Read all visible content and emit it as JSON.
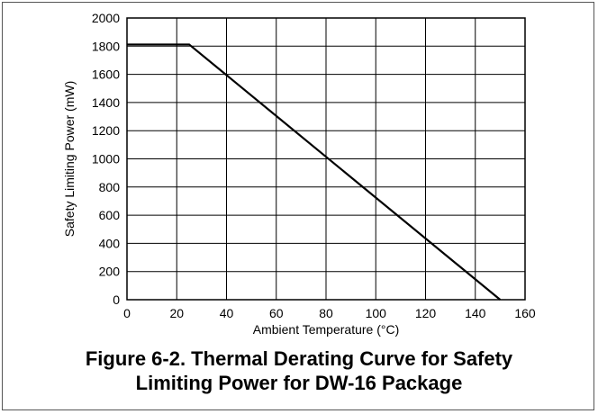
{
  "chart_data": {
    "type": "line",
    "xlabel": "Ambient Temperature (°C)",
    "ylabel": "Safety Limiting Power (mW)",
    "xlim": [
      0,
      160
    ],
    "ylim": [
      0,
      2000
    ],
    "xticks": [
      0,
      20,
      40,
      60,
      80,
      100,
      120,
      140,
      160
    ],
    "yticks": [
      0,
      200,
      400,
      600,
      800,
      1000,
      1200,
      1400,
      1600,
      1800,
      2000
    ],
    "grid": true,
    "series": [
      {
        "x": [
          0,
          25,
          150
        ],
        "y": [
          1812,
          1812,
          0
        ]
      }
    ],
    "colors": {
      "line": "#000000",
      "grid": "#000000"
    }
  },
  "caption": {
    "line1": "Figure 6-2. Thermal Derating Curve for Safety",
    "line2": "Limiting Power for DW-16 Package"
  }
}
